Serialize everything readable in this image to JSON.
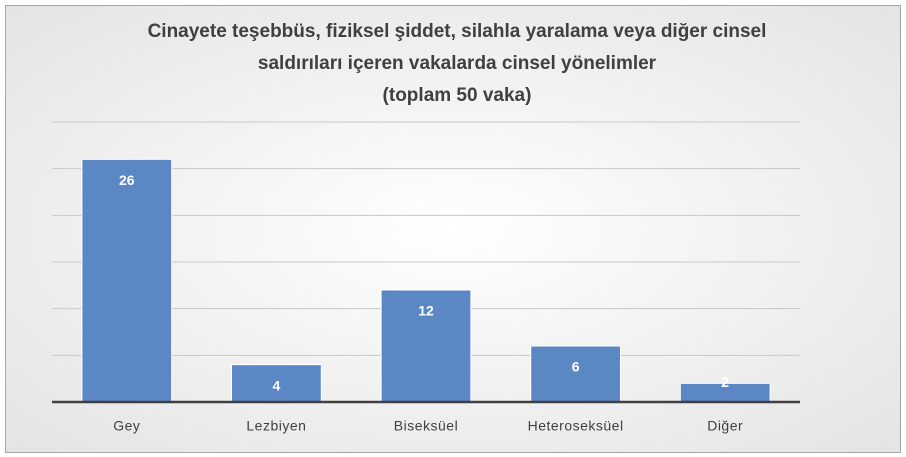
{
  "chart_data": {
    "type": "bar",
    "title": [
      "Cinayete teşebbüs, fiziksel şiddet, silahla yaralama veya diğer cinsel",
      "saldırıları içeren vakalarda cinsel yönelimler",
      "(toplam 50 vaka)"
    ],
    "categories": [
      "Gey",
      "Lezbiyen",
      "Biseksüel",
      "Heteroseksüel",
      "Diğer"
    ],
    "values": [
      26,
      4,
      12,
      6,
      2
    ],
    "color": "#5b87c5",
    "ylim": [
      0,
      30
    ],
    "yticks": [
      0,
      5,
      10,
      15,
      20,
      25,
      30
    ],
    "grid": true
  }
}
